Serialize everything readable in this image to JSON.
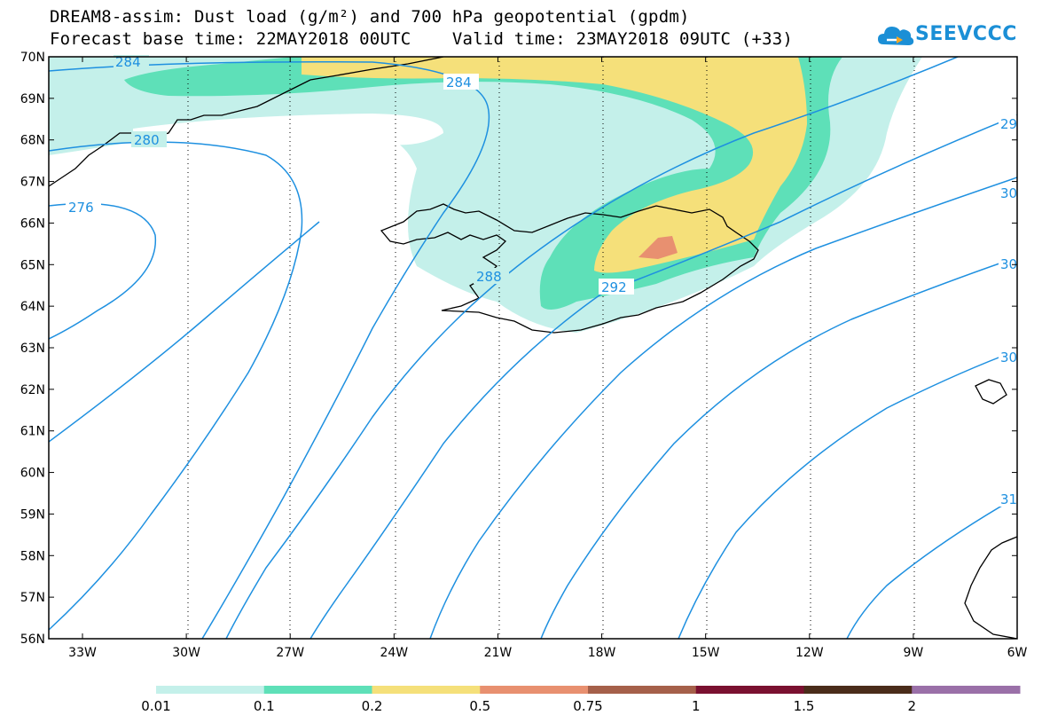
{
  "title": {
    "line1": "DREAM8-assim: Dust load (g/m²) and 700 hPa geopotential (gpdm)",
    "line2": "Forecast base time: 22MAY2018 00UTC    Valid time: 23MAY2018 09UTC (+33)"
  },
  "logo": {
    "text": "SEEVCCC",
    "icon": "cloud-icon"
  },
  "map": {
    "region": "Iceland / North Atlantic",
    "lat_labels": [
      "70N",
      "69N",
      "68N",
      "67N",
      "66N",
      "65N",
      "64N",
      "63N",
      "62N",
      "61N",
      "60N",
      "59N",
      "58N",
      "57N",
      "56N"
    ],
    "lon_labels": [
      "33W",
      "30W",
      "27W",
      "24W",
      "21W",
      "18W",
      "15W",
      "12W",
      "9W",
      "6W"
    ],
    "contour_labels": [
      "284",
      "284",
      "280",
      "276",
      "288",
      "292",
      "29",
      "30",
      "30",
      "30",
      "31"
    ],
    "contour_color": "#1e90e0",
    "dust_colors": {
      "c1": "#c4f0ea",
      "c2": "#5ee0b8",
      "c3": "#f5e07a",
      "c4": "#e89070"
    }
  },
  "legend": {
    "labels": [
      "0.01",
      "0.1",
      "0.2",
      "0.5",
      "0.75",
      "1",
      "1.5",
      "2"
    ],
    "colors": [
      "#c4f0ea",
      "#5ee0b8",
      "#f5e07a",
      "#e89070",
      "#a5604a",
      "#7a1030",
      "#4a2c1a",
      "#9a70a8"
    ]
  }
}
